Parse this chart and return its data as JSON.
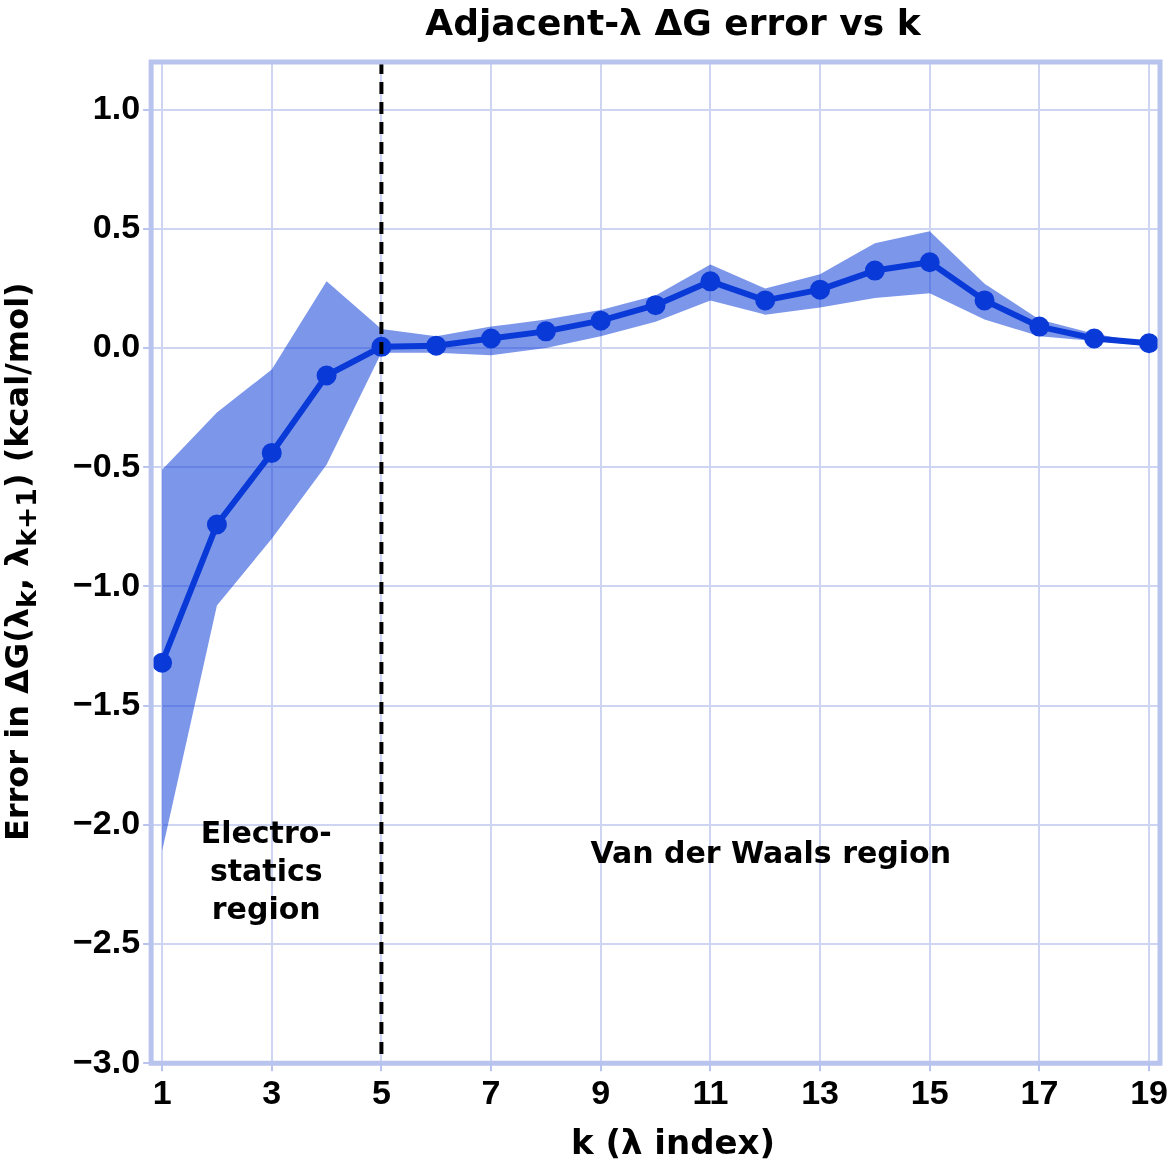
{
  "chart_data": {
    "type": "line",
    "title": "Adjacent-λ ΔG error vs k",
    "xlabel": "k (λ index)",
    "ylabel": "Error in ΔG(λ$_{k}$, λ$_{k+1}$) (kcal/mol)",
    "x": [
      1,
      2,
      3,
      4,
      5,
      6,
      7,
      8,
      9,
      10,
      11,
      12,
      13,
      14,
      15,
      16,
      17,
      18,
      19
    ],
    "series": [
      {
        "color": "#0a3ad8",
        "values": [
          -1.32,
          -0.74,
          -0.44,
          -0.115,
          0.005,
          0.01,
          0.04,
          0.07,
          0.115,
          0.18,
          0.28,
          0.2,
          0.245,
          0.325,
          0.36,
          0.2,
          0.09,
          0.04,
          0.02
        ],
        "lower": [
          -2.11,
          -1.08,
          -0.8,
          -0.49,
          -0.02,
          -0.02,
          -0.03,
          0,
          0.05,
          0.11,
          0.2,
          0.14,
          0.17,
          0.21,
          0.23,
          0.12,
          0.05,
          0.03,
          0.01
        ],
        "upper": [
          -0.51,
          -0.27,
          -0.09,
          0.28,
          0.08,
          0.05,
          0.09,
          0.12,
          0.16,
          0.22,
          0.35,
          0.25,
          0.31,
          0.44,
          0.49,
          0.27,
          0.12,
          0.06,
          0.02
        ]
      }
    ],
    "xlim": [
      0.8,
      19.2
    ],
    "xticks": [
      1,
      3,
      5,
      7,
      9,
      11,
      13,
      15,
      17,
      19
    ],
    "ylim": [
      -3,
      1.2
    ],
    "yticks": [
      {
        "value": -3,
        "label": "−3.0"
      },
      {
        "value": -2.5,
        "label": "−2.5"
      },
      {
        "value": -2,
        "label": "−2.0"
      },
      {
        "value": -1.5,
        "label": "−1.5"
      },
      {
        "value": -1,
        "label": "−1.0"
      },
      {
        "value": -0.5,
        "label": "−0.5"
      },
      {
        "value": 0,
        "label": "0.0"
      },
      {
        "value": 0.5,
        "label": "0.5"
      },
      {
        "value": 1,
        "label": "1.0"
      }
    ],
    "grid": true,
    "marker": "circle",
    "line_style": "solid",
    "legend": false,
    "ref_lines": [
      {
        "axis": "x",
        "value": 5,
        "color": "#000000",
        "line_style": "dashed"
      }
    ],
    "annotations": [
      "Electro-\nstatics\nregion",
      "Van der Waals region"
    ]
  }
}
